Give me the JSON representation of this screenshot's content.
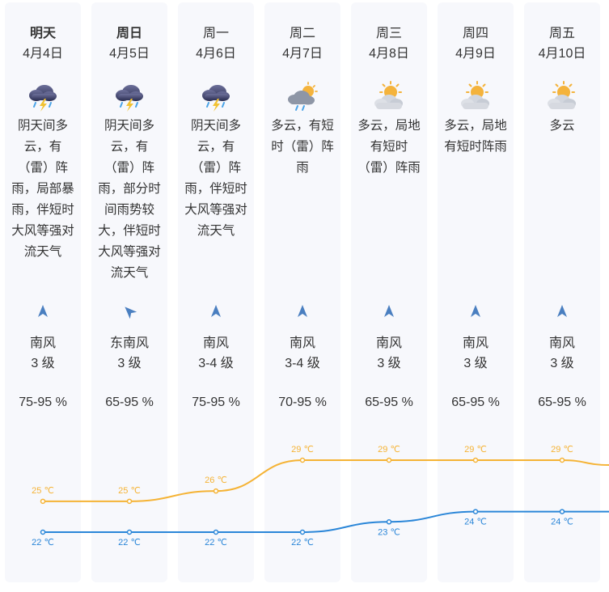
{
  "days": [
    {
      "name": "明天",
      "bold": true,
      "date": "4月4日",
      "icon": "thunderstorm-icon",
      "weather": "阴天间多云，有（雷）阵雨，局部暴雨，伴短时大风等强对流天气",
      "wind_dir": "南风",
      "wind_icon": "wind-arrow-icon",
      "wind_rot": 0,
      "wind_level": "3 级",
      "humidity": "75-95 %"
    },
    {
      "name": "周日",
      "bold": true,
      "date": "4月5日",
      "icon": "thunderstorm-icon",
      "weather": "阴天间多云，有（雷）阵雨，部分时间雨势较大，伴短时大风等强对流天气",
      "wind_dir": "东南风",
      "wind_icon": "wind-arrow-icon",
      "wind_rot": -45,
      "wind_level": "3 级",
      "humidity": "65-95 %"
    },
    {
      "name": "周一",
      "bold": false,
      "date": "4月6日",
      "icon": "thunderstorm-icon",
      "weather": "阴天间多云，有（雷）阵雨，伴短时大风等强对流天气",
      "wind_dir": "南风",
      "wind_icon": "wind-arrow-icon",
      "wind_rot": 0,
      "wind_level": "3-4 级",
      "humidity": "75-95 %"
    },
    {
      "name": "周二",
      "bold": false,
      "date": "4月7日",
      "icon": "cloudy-rain-icon",
      "weather": "多云，有短时（雷）阵雨",
      "wind_dir": "南风",
      "wind_icon": "wind-arrow-icon",
      "wind_rot": 0,
      "wind_level": "3-4 级",
      "humidity": "70-95 %"
    },
    {
      "name": "周三",
      "bold": false,
      "date": "4月8日",
      "icon": "partly-cloudy-icon",
      "weather": "多云，局地有短时（雷）阵雨",
      "wind_dir": "南风",
      "wind_icon": "wind-arrow-icon",
      "wind_rot": 0,
      "wind_level": "3 级",
      "humidity": "65-95 %"
    },
    {
      "name": "周四",
      "bold": false,
      "date": "4月9日",
      "icon": "partly-cloudy-icon",
      "weather": "多云，局地有短时阵雨",
      "wind_dir": "南风",
      "wind_icon": "wind-arrow-icon",
      "wind_rot": 0,
      "wind_level": "3 级",
      "humidity": "65-95 %"
    },
    {
      "name": "周五",
      "bold": false,
      "date": "4月10日",
      "icon": "partly-cloudy-icon",
      "weather": "多云",
      "wind_dir": "南风",
      "wind_icon": "wind-arrow-icon",
      "wind_rot": 0,
      "wind_level": "3 级",
      "humidity": "65-95 %"
    }
  ],
  "chart_data": {
    "type": "line",
    "x": [
      "4月4日",
      "4月5日",
      "4月6日",
      "4月7日",
      "4月8日",
      "4月9日",
      "4月10日"
    ],
    "series": [
      {
        "values": [
          25,
          25,
          26,
          29,
          29,
          29,
          29
        ],
        "labels": [
          "25 ℃",
          "25 ℃",
          "26 ℃",
          "29 ℃",
          "29 ℃",
          "29 ℃",
          "29 ℃"
        ],
        "color": "#f5b335"
      },
      {
        "values": [
          22,
          22,
          22,
          22,
          23,
          24,
          24
        ],
        "labels": [
          "22 ℃",
          "22 ℃",
          "22 ℃",
          "22 ℃",
          "23 ℃",
          "24 ℃",
          "24 ℃"
        ],
        "color": "#2a86d8"
      }
    ],
    "ylim": [
      22,
      29
    ],
    "grid": false
  },
  "colors": {
    "high": "#f5b335",
    "low": "#2a86d8",
    "wind": "#4a7fc0",
    "column_bg": "#f7f8fc"
  }
}
